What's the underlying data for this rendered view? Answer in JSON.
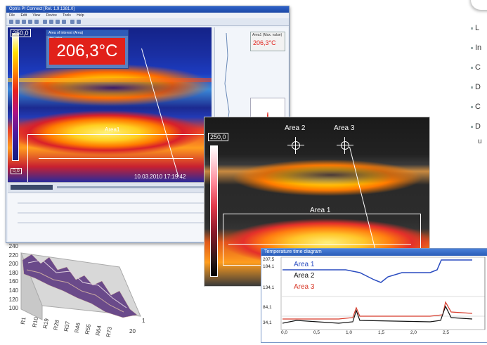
{
  "main_window": {
    "title": "Optris PI Connect [Rel. 1.9.1381.0]",
    "menu": [
      "File",
      "Edit",
      "View",
      "Device",
      "Tools",
      "Help"
    ],
    "scale_max": "250,0",
    "scale_min": "0,0",
    "temp_box_title": "Area of interest (Area)",
    "temp_box_sub": "Max. value",
    "temperature": "206,3°C",
    "area_label": "Area1",
    "timestamp": "10.03.2010 17:19:42",
    "side_temp_title": "Area1 (Max. value)",
    "side_temp_value": "206,3°C"
  },
  "second_view": {
    "scale_max": "250,0",
    "areas": [
      "Area 2",
      "Area 3",
      "Area 1"
    ]
  },
  "surface_plot": {
    "y_ticks": [
      "240",
      "220",
      "200",
      "180",
      "160",
      "140",
      "120",
      "100"
    ],
    "x_ticks": [
      "R1",
      "R10",
      "R19",
      "R28",
      "R37",
      "R46",
      "R55",
      "R64",
      "R73"
    ],
    "z_ticks": [
      "1",
      "20"
    ]
  },
  "time_diagram": {
    "title": "Temperature time diagram",
    "y_ticks": [
      "207,5",
      "184,1",
      "134,1",
      "84,1",
      "34,1"
    ],
    "x_ticks": [
      "0,0",
      "0,5",
      "1,0",
      "1,5",
      "2,0",
      "2,5"
    ],
    "series": [
      {
        "name": "Area 1",
        "color": "#2a4cc0"
      },
      {
        "name": "Area 2",
        "color": "#111111"
      },
      {
        "name": "Area 3",
        "color": "#d83a2a"
      }
    ]
  },
  "side_list": {
    "items": [
      "L",
      "In",
      "C",
      "D",
      "C",
      "D"
    ],
    "extra": "u"
  }
}
